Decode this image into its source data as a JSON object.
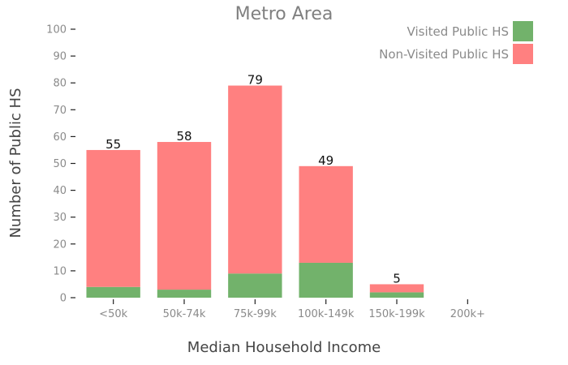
{
  "chart_data": {
    "type": "bar",
    "stacked": true,
    "title": "Metro Area",
    "xlabel": "Median Household Income",
    "ylabel": "Number of Public HS",
    "categories": [
      "<50k",
      "50k-74k",
      "75k-99k",
      "100k-149k",
      "150k-199k",
      "200k+"
    ],
    "ylim": [
      0,
      100
    ],
    "yticks": [
      0,
      10,
      20,
      30,
      40,
      50,
      60,
      70,
      80,
      90,
      100
    ],
    "grid": false,
    "legend_position": "top-right",
    "series": [
      {
        "name": "Visited Public HS",
        "color": "#72b26b",
        "values": [
          4,
          3,
          9,
          13,
          2,
          0
        ]
      },
      {
        "name": "Non-Visited Public HS",
        "color": "#ff8080",
        "values": [
          51,
          55,
          70,
          36,
          3,
          0
        ]
      }
    ],
    "totals": [
      55,
      58,
      79,
      49,
      5,
      null
    ]
  }
}
